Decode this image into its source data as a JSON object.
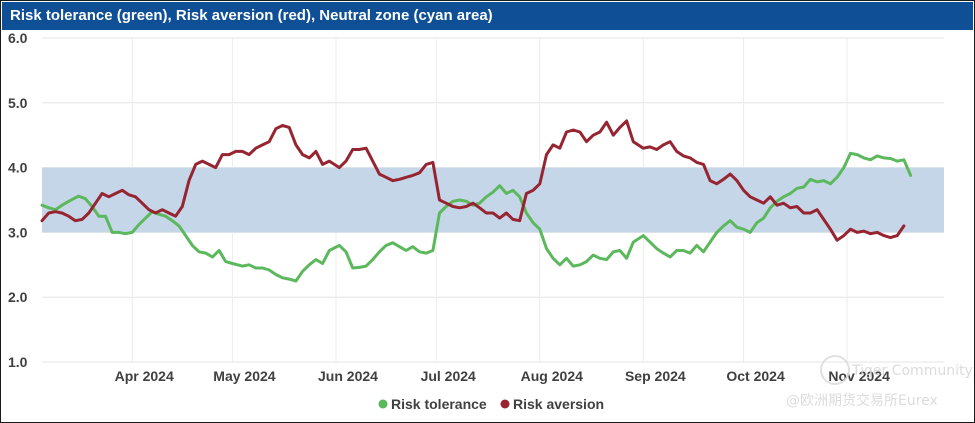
{
  "chart_data": {
    "type": "line",
    "title": "Risk tolerance (green), Risk aversion (red), Neutral zone (cyan area)",
    "xlabel": "",
    "ylabel": "",
    "ylim": [
      1.0,
      6.0
    ],
    "yticks": [
      "6.0",
      "5.0",
      "4.0",
      "3.0",
      "2.0",
      "1.0"
    ],
    "xlim": [
      "2024-03-05",
      "2024-11-30"
    ],
    "xticks": [
      {
        "label": "Apr 2024",
        "date": "2024-04-01"
      },
      {
        "label": "May 2024",
        "date": "2024-05-01"
      },
      {
        "label": "Jun 2024",
        "date": "2024-06-01"
      },
      {
        "label": "Jul 2024",
        "date": "2024-07-01"
      },
      {
        "label": "Aug 2024",
        "date": "2024-08-01"
      },
      {
        "label": "Sep 2024",
        "date": "2024-09-01"
      },
      {
        "label": "Oct 2024",
        "date": "2024-10-01"
      },
      {
        "label": "Nov 2024",
        "date": "2024-11-01"
      }
    ],
    "grid": true,
    "legend_position": "bottom-center",
    "neutral_zone": {
      "from": 3.0,
      "to": 4.0,
      "color": "#c5d6e9"
    },
    "series": [
      {
        "name": "Risk tolerance",
        "color": "#5cb85c",
        "points": [
          [
            "2024-03-05",
            3.42
          ],
          [
            "2024-03-07",
            3.38
          ],
          [
            "2024-03-09",
            3.35
          ],
          [
            "2024-03-11",
            3.42
          ],
          [
            "2024-03-13",
            3.48
          ],
          [
            "2024-03-16",
            3.56
          ],
          [
            "2024-03-18",
            3.52
          ],
          [
            "2024-03-20",
            3.4
          ],
          [
            "2024-03-22",
            3.25
          ],
          [
            "2024-03-24",
            3.25
          ],
          [
            "2024-03-26",
            3.0
          ],
          [
            "2024-03-28",
            3.0
          ],
          [
            "2024-03-30",
            2.98
          ],
          [
            "2024-04-01",
            3.0
          ],
          [
            "2024-04-03",
            3.12
          ],
          [
            "2024-04-05",
            3.22
          ],
          [
            "2024-04-07",
            3.32
          ],
          [
            "2024-04-09",
            3.28
          ],
          [
            "2024-04-11",
            3.25
          ],
          [
            "2024-04-13",
            3.18
          ],
          [
            "2024-04-15",
            3.1
          ],
          [
            "2024-04-17",
            2.95
          ],
          [
            "2024-04-19",
            2.8
          ],
          [
            "2024-04-21",
            2.7
          ],
          [
            "2024-04-23",
            2.68
          ],
          [
            "2024-04-25",
            2.62
          ],
          [
            "2024-04-27",
            2.72
          ],
          [
            "2024-04-29",
            2.55
          ],
          [
            "2024-05-01",
            2.52
          ],
          [
            "2024-05-04",
            2.48
          ],
          [
            "2024-05-06",
            2.5
          ],
          [
            "2024-05-08",
            2.45
          ],
          [
            "2024-05-10",
            2.45
          ],
          [
            "2024-05-12",
            2.42
          ],
          [
            "2024-05-14",
            2.35
          ],
          [
            "2024-05-16",
            2.3
          ],
          [
            "2024-05-18",
            2.28
          ],
          [
            "2024-05-20",
            2.25
          ],
          [
            "2024-05-22",
            2.4
          ],
          [
            "2024-05-24",
            2.5
          ],
          [
            "2024-05-26",
            2.58
          ],
          [
            "2024-05-28",
            2.52
          ],
          [
            "2024-05-30",
            2.72
          ],
          [
            "2024-06-02",
            2.8
          ],
          [
            "2024-06-04",
            2.7
          ],
          [
            "2024-06-06",
            2.45
          ],
          [
            "2024-06-08",
            2.46
          ],
          [
            "2024-06-10",
            2.48
          ],
          [
            "2024-06-12",
            2.58
          ],
          [
            "2024-06-14",
            2.7
          ],
          [
            "2024-06-16",
            2.8
          ],
          [
            "2024-06-18",
            2.84
          ],
          [
            "2024-06-20",
            2.78
          ],
          [
            "2024-06-22",
            2.72
          ],
          [
            "2024-06-24",
            2.78
          ],
          [
            "2024-06-26",
            2.7
          ],
          [
            "2024-06-28",
            2.68
          ],
          [
            "2024-06-30",
            2.72
          ],
          [
            "2024-07-02",
            3.3
          ],
          [
            "2024-07-04",
            3.4
          ],
          [
            "2024-07-06",
            3.48
          ],
          [
            "2024-07-08",
            3.5
          ],
          [
            "2024-07-10",
            3.48
          ],
          [
            "2024-07-12",
            3.42
          ],
          [
            "2024-07-14",
            3.45
          ],
          [
            "2024-07-16",
            3.55
          ],
          [
            "2024-07-18",
            3.62
          ],
          [
            "2024-07-20",
            3.72
          ],
          [
            "2024-07-22",
            3.6
          ],
          [
            "2024-07-24",
            3.65
          ],
          [
            "2024-07-26",
            3.55
          ],
          [
            "2024-07-28",
            3.3
          ],
          [
            "2024-07-30",
            3.15
          ],
          [
            "2024-08-01",
            3.05
          ],
          [
            "2024-08-03",
            2.75
          ],
          [
            "2024-08-05",
            2.6
          ],
          [
            "2024-08-07",
            2.5
          ],
          [
            "2024-08-09",
            2.6
          ],
          [
            "2024-08-11",
            2.48
          ],
          [
            "2024-08-13",
            2.5
          ],
          [
            "2024-08-15",
            2.55
          ],
          [
            "2024-08-17",
            2.65
          ],
          [
            "2024-08-19",
            2.6
          ],
          [
            "2024-08-21",
            2.58
          ],
          [
            "2024-08-23",
            2.7
          ],
          [
            "2024-08-25",
            2.72
          ],
          [
            "2024-08-27",
            2.6
          ],
          [
            "2024-08-29",
            2.85
          ],
          [
            "2024-09-01",
            2.95
          ],
          [
            "2024-09-03",
            2.85
          ],
          [
            "2024-09-05",
            2.75
          ],
          [
            "2024-09-07",
            2.68
          ],
          [
            "2024-09-09",
            2.62
          ],
          [
            "2024-09-11",
            2.72
          ],
          [
            "2024-09-13",
            2.72
          ],
          [
            "2024-09-15",
            2.68
          ],
          [
            "2024-09-17",
            2.8
          ],
          [
            "2024-09-19",
            2.7
          ],
          [
            "2024-09-21",
            2.85
          ],
          [
            "2024-09-23",
            3.0
          ],
          [
            "2024-09-25",
            3.1
          ],
          [
            "2024-09-27",
            3.18
          ],
          [
            "2024-09-29",
            3.08
          ],
          [
            "2024-10-01",
            3.05
          ],
          [
            "2024-10-03",
            3.0
          ],
          [
            "2024-10-05",
            3.15
          ],
          [
            "2024-10-07",
            3.22
          ],
          [
            "2024-10-09",
            3.38
          ],
          [
            "2024-10-11",
            3.48
          ],
          [
            "2024-10-13",
            3.55
          ],
          [
            "2024-10-15",
            3.6
          ],
          [
            "2024-10-17",
            3.68
          ],
          [
            "2024-10-19",
            3.7
          ],
          [
            "2024-10-21",
            3.82
          ],
          [
            "2024-10-23",
            3.78
          ],
          [
            "2024-10-25",
            3.8
          ],
          [
            "2024-10-27",
            3.75
          ],
          [
            "2024-10-29",
            3.85
          ],
          [
            "2024-10-31",
            4.0
          ],
          [
            "2024-11-02",
            4.22
          ],
          [
            "2024-11-04",
            4.2
          ],
          [
            "2024-11-06",
            4.15
          ],
          [
            "2024-11-08",
            4.12
          ],
          [
            "2024-11-10",
            4.18
          ],
          [
            "2024-11-12",
            4.15
          ],
          [
            "2024-11-14",
            4.14
          ],
          [
            "2024-11-16",
            4.1
          ],
          [
            "2024-11-18",
            4.12
          ],
          [
            "2024-11-20",
            3.88
          ]
        ]
      },
      {
        "name": "Risk aversion",
        "color": "#962431",
        "points": [
          [
            "2024-03-05",
            3.18
          ],
          [
            "2024-03-07",
            3.3
          ],
          [
            "2024-03-09",
            3.32
          ],
          [
            "2024-03-11",
            3.3
          ],
          [
            "2024-03-13",
            3.25
          ],
          [
            "2024-03-15",
            3.18
          ],
          [
            "2024-03-17",
            3.2
          ],
          [
            "2024-03-19",
            3.3
          ],
          [
            "2024-03-21",
            3.45
          ],
          [
            "2024-03-23",
            3.6
          ],
          [
            "2024-03-25",
            3.55
          ],
          [
            "2024-03-27",
            3.6
          ],
          [
            "2024-03-29",
            3.65
          ],
          [
            "2024-03-31",
            3.58
          ],
          [
            "2024-04-02",
            3.55
          ],
          [
            "2024-04-04",
            3.45
          ],
          [
            "2024-04-06",
            3.35
          ],
          [
            "2024-04-08",
            3.3
          ],
          [
            "2024-04-10",
            3.35
          ],
          [
            "2024-04-12",
            3.3
          ],
          [
            "2024-04-14",
            3.25
          ],
          [
            "2024-04-16",
            3.4
          ],
          [
            "2024-04-18",
            3.8
          ],
          [
            "2024-04-20",
            4.05
          ],
          [
            "2024-04-22",
            4.1
          ],
          [
            "2024-04-24",
            4.05
          ],
          [
            "2024-04-26",
            4.0
          ],
          [
            "2024-04-28",
            4.2
          ],
          [
            "2024-04-30",
            4.2
          ],
          [
            "2024-05-02",
            4.25
          ],
          [
            "2024-05-04",
            4.25
          ],
          [
            "2024-05-06",
            4.2
          ],
          [
            "2024-05-08",
            4.3
          ],
          [
            "2024-05-10",
            4.35
          ],
          [
            "2024-05-12",
            4.4
          ],
          [
            "2024-05-14",
            4.6
          ],
          [
            "2024-05-16",
            4.65
          ],
          [
            "2024-05-18",
            4.62
          ],
          [
            "2024-05-20",
            4.35
          ],
          [
            "2024-05-22",
            4.2
          ],
          [
            "2024-05-24",
            4.15
          ],
          [
            "2024-05-26",
            4.25
          ],
          [
            "2024-05-28",
            4.05
          ],
          [
            "2024-05-30",
            4.1
          ],
          [
            "2024-06-02",
            4.0
          ],
          [
            "2024-06-04",
            4.1
          ],
          [
            "2024-06-06",
            4.28
          ],
          [
            "2024-06-08",
            4.28
          ],
          [
            "2024-06-10",
            4.3
          ],
          [
            "2024-06-12",
            4.1
          ],
          [
            "2024-06-14",
            3.9
          ],
          [
            "2024-06-16",
            3.85
          ],
          [
            "2024-06-18",
            3.8
          ],
          [
            "2024-06-20",
            3.82
          ],
          [
            "2024-06-22",
            3.85
          ],
          [
            "2024-06-24",
            3.88
          ],
          [
            "2024-06-26",
            3.92
          ],
          [
            "2024-06-28",
            4.05
          ],
          [
            "2024-06-30",
            4.08
          ],
          [
            "2024-07-02",
            3.5
          ],
          [
            "2024-07-04",
            3.45
          ],
          [
            "2024-07-06",
            3.4
          ],
          [
            "2024-07-08",
            3.38
          ],
          [
            "2024-07-10",
            3.4
          ],
          [
            "2024-07-12",
            3.45
          ],
          [
            "2024-07-14",
            3.38
          ],
          [
            "2024-07-16",
            3.3
          ],
          [
            "2024-07-18",
            3.3
          ],
          [
            "2024-07-20",
            3.22
          ],
          [
            "2024-07-22",
            3.3
          ],
          [
            "2024-07-24",
            3.2
          ],
          [
            "2024-07-26",
            3.18
          ],
          [
            "2024-07-28",
            3.6
          ],
          [
            "2024-07-30",
            3.65
          ],
          [
            "2024-08-01",
            3.75
          ],
          [
            "2024-08-03",
            4.2
          ],
          [
            "2024-08-05",
            4.35
          ],
          [
            "2024-08-07",
            4.3
          ],
          [
            "2024-08-09",
            4.55
          ],
          [
            "2024-08-11",
            4.58
          ],
          [
            "2024-08-13",
            4.55
          ],
          [
            "2024-08-15",
            4.4
          ],
          [
            "2024-08-17",
            4.5
          ],
          [
            "2024-08-19",
            4.55
          ],
          [
            "2024-08-21",
            4.7
          ],
          [
            "2024-08-23",
            4.5
          ],
          [
            "2024-08-25",
            4.62
          ],
          [
            "2024-08-27",
            4.72
          ],
          [
            "2024-08-29",
            4.4
          ],
          [
            "2024-09-01",
            4.3
          ],
          [
            "2024-09-03",
            4.32
          ],
          [
            "2024-09-05",
            4.28
          ],
          [
            "2024-09-07",
            4.35
          ],
          [
            "2024-09-09",
            4.4
          ],
          [
            "2024-09-11",
            4.25
          ],
          [
            "2024-09-13",
            4.18
          ],
          [
            "2024-09-15",
            4.15
          ],
          [
            "2024-09-17",
            4.08
          ],
          [
            "2024-09-19",
            4.05
          ],
          [
            "2024-09-21",
            3.8
          ],
          [
            "2024-09-23",
            3.75
          ],
          [
            "2024-09-25",
            3.82
          ],
          [
            "2024-09-27",
            3.9
          ],
          [
            "2024-09-29",
            3.8
          ],
          [
            "2024-10-01",
            3.65
          ],
          [
            "2024-10-03",
            3.55
          ],
          [
            "2024-10-05",
            3.5
          ],
          [
            "2024-10-07",
            3.45
          ],
          [
            "2024-10-09",
            3.55
          ],
          [
            "2024-10-11",
            3.42
          ],
          [
            "2024-10-13",
            3.45
          ],
          [
            "2024-10-15",
            3.38
          ],
          [
            "2024-10-17",
            3.4
          ],
          [
            "2024-10-19",
            3.3
          ],
          [
            "2024-10-21",
            3.3
          ],
          [
            "2024-10-23",
            3.35
          ],
          [
            "2024-10-25",
            3.2
          ],
          [
            "2024-10-27",
            3.05
          ],
          [
            "2024-10-29",
            2.88
          ],
          [
            "2024-10-31",
            2.95
          ],
          [
            "2024-11-02",
            3.05
          ],
          [
            "2024-11-04",
            3.0
          ],
          [
            "2024-11-06",
            3.02
          ],
          [
            "2024-11-08",
            2.98
          ],
          [
            "2024-11-10",
            3.0
          ],
          [
            "2024-11-12",
            2.95
          ],
          [
            "2024-11-14",
            2.92
          ],
          [
            "2024-11-16",
            2.95
          ],
          [
            "2024-11-18",
            3.1
          ]
        ]
      }
    ]
  },
  "watermark": {
    "brand": "Tiger Community",
    "source": "@欧洲期货交易所Eurex"
  }
}
